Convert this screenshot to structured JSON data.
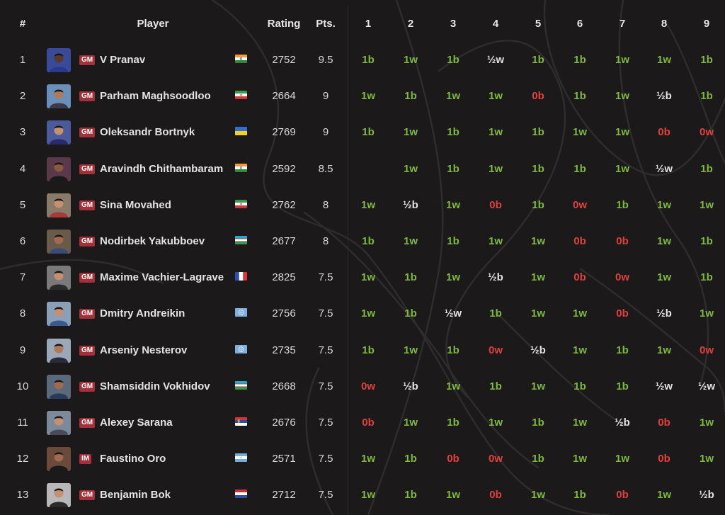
{
  "header": {
    "num": "#",
    "player": "Player",
    "rating": "Rating",
    "pts": "Pts.",
    "rounds": [
      "1",
      "2",
      "3",
      "4",
      "5",
      "6",
      "7",
      "8",
      "9"
    ]
  },
  "colors": {
    "win": "#7fba3c",
    "loss": "#e2403a",
    "draw": "#e3e3e3",
    "title_badge": "#a4303a",
    "background": "#1b191a"
  },
  "players": [
    {
      "rank": "1",
      "title": "GM",
      "name": "V Pranav",
      "flag": "india",
      "rating": "2752",
      "pts": "9.5",
      "results": [
        "1b",
        "1w",
        "1b",
        "½w",
        "1b",
        "1b",
        "1w",
        "1w",
        "1b"
      ]
    },
    {
      "rank": "2",
      "title": "GM",
      "name": "Parham Maghsoodloo",
      "flag": "iran",
      "rating": "2664",
      "pts": "9",
      "results": [
        "1w",
        "1b",
        "1w",
        "1w",
        "0b",
        "1b",
        "1w",
        "½b",
        "1b"
      ]
    },
    {
      "rank": "3",
      "title": "GM",
      "name": "Oleksandr Bortnyk",
      "flag": "ukraine",
      "rating": "2769",
      "pts": "9",
      "results": [
        "1b",
        "1w",
        "1b",
        "1w",
        "1b",
        "1w",
        "1w",
        "0b",
        "0w"
      ]
    },
    {
      "rank": "4",
      "title": "GM",
      "name": "Aravindh Chithambaram",
      "flag": "india",
      "rating": "2592",
      "pts": "8.5",
      "results": [
        "",
        "1w",
        "1b",
        "1w",
        "1b",
        "1b",
        "1w",
        "½w",
        "1b"
      ]
    },
    {
      "rank": "5",
      "title": "GM",
      "name": "Sina Movahed",
      "flag": "iran",
      "rating": "2762",
      "pts": "8",
      "results": [
        "1w",
        "½b",
        "1w",
        "0b",
        "1b",
        "0w",
        "1b",
        "1w",
        "1w"
      ]
    },
    {
      "rank": "6",
      "title": "GM",
      "name": "Nodirbek Yakubboev",
      "flag": "uzbekistan",
      "rating": "2677",
      "pts": "8",
      "results": [
        "1b",
        "1w",
        "1b",
        "1w",
        "1w",
        "0b",
        "0b",
        "1w",
        "1b"
      ]
    },
    {
      "rank": "7",
      "title": "GM",
      "name": "Maxime Vachier-Lagrave",
      "flag": "france",
      "rating": "2825",
      "pts": "7.5",
      "results": [
        "1w",
        "1b",
        "1w",
        "½b",
        "1w",
        "0b",
        "0w",
        "1w",
        "1b"
      ]
    },
    {
      "rank": "8",
      "title": "GM",
      "name": "Dmitry Andreikin",
      "flag": "fide",
      "rating": "2756",
      "pts": "7.5",
      "results": [
        "1w",
        "1b",
        "½w",
        "1b",
        "1w",
        "1w",
        "0b",
        "½b",
        "1w"
      ]
    },
    {
      "rank": "9",
      "title": "GM",
      "name": "Arseniy Nesterov",
      "flag": "fide",
      "rating": "2735",
      "pts": "7.5",
      "results": [
        "1b",
        "1w",
        "1b",
        "0w",
        "½b",
        "1w",
        "1b",
        "1w",
        "0w"
      ]
    },
    {
      "rank": "10",
      "title": "GM",
      "name": "Shamsiddin Vokhidov",
      "flag": "uzbekistan",
      "rating": "2668",
      "pts": "7.5",
      "results": [
        "0w",
        "½b",
        "1w",
        "1b",
        "1w",
        "1b",
        "1b",
        "½w",
        "½w"
      ]
    },
    {
      "rank": "11",
      "title": "GM",
      "name": "Alexey Sarana",
      "flag": "serbia",
      "rating": "2676",
      "pts": "7.5",
      "results": [
        "0b",
        "1w",
        "1b",
        "1w",
        "1b",
        "1w",
        "½b",
        "0b",
        "1w"
      ]
    },
    {
      "rank": "12",
      "title": "IM",
      "name": "Faustino Oro",
      "flag": "argentina",
      "rating": "2571",
      "pts": "7.5",
      "results": [
        "1w",
        "1b",
        "0b",
        "0w",
        "1b",
        "1w",
        "1w",
        "0b",
        "1w"
      ]
    },
    {
      "rank": "13",
      "title": "GM",
      "name": "Benjamin Bok",
      "flag": "netherlands",
      "rating": "2712",
      "pts": "7.5",
      "results": [
        "1w",
        "1b",
        "1w",
        "0b",
        "1w",
        "1b",
        "0b",
        "1w",
        "½b"
      ]
    }
  ]
}
